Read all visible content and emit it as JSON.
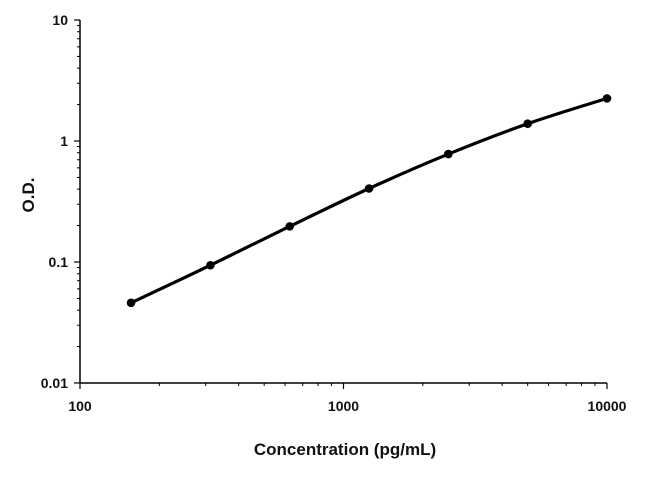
{
  "chart_data": {
    "type": "line",
    "title": "",
    "xlabel": "Concentration (pg/mL)",
    "ylabel": "O.D.",
    "x_scale": "log",
    "y_scale": "log",
    "xlim": [
      100,
      10000
    ],
    "ylim": [
      0.01,
      10
    ],
    "x_ticks": [
      "100",
      "1000",
      "10000"
    ],
    "y_ticks": [
      "0.01",
      "0.1",
      "1",
      "10"
    ],
    "grid": false,
    "legend": "none",
    "series": [
      {
        "x": [
          156.25,
          312.5,
          625,
          1250,
          2500,
          5000,
          10000
        ],
        "y": [
          0.046,
          0.094,
          0.197,
          0.405,
          0.78,
          1.39,
          2.25
        ]
      }
    ],
    "colors": {
      "line": "#000000",
      "axis": "#000000"
    }
  }
}
